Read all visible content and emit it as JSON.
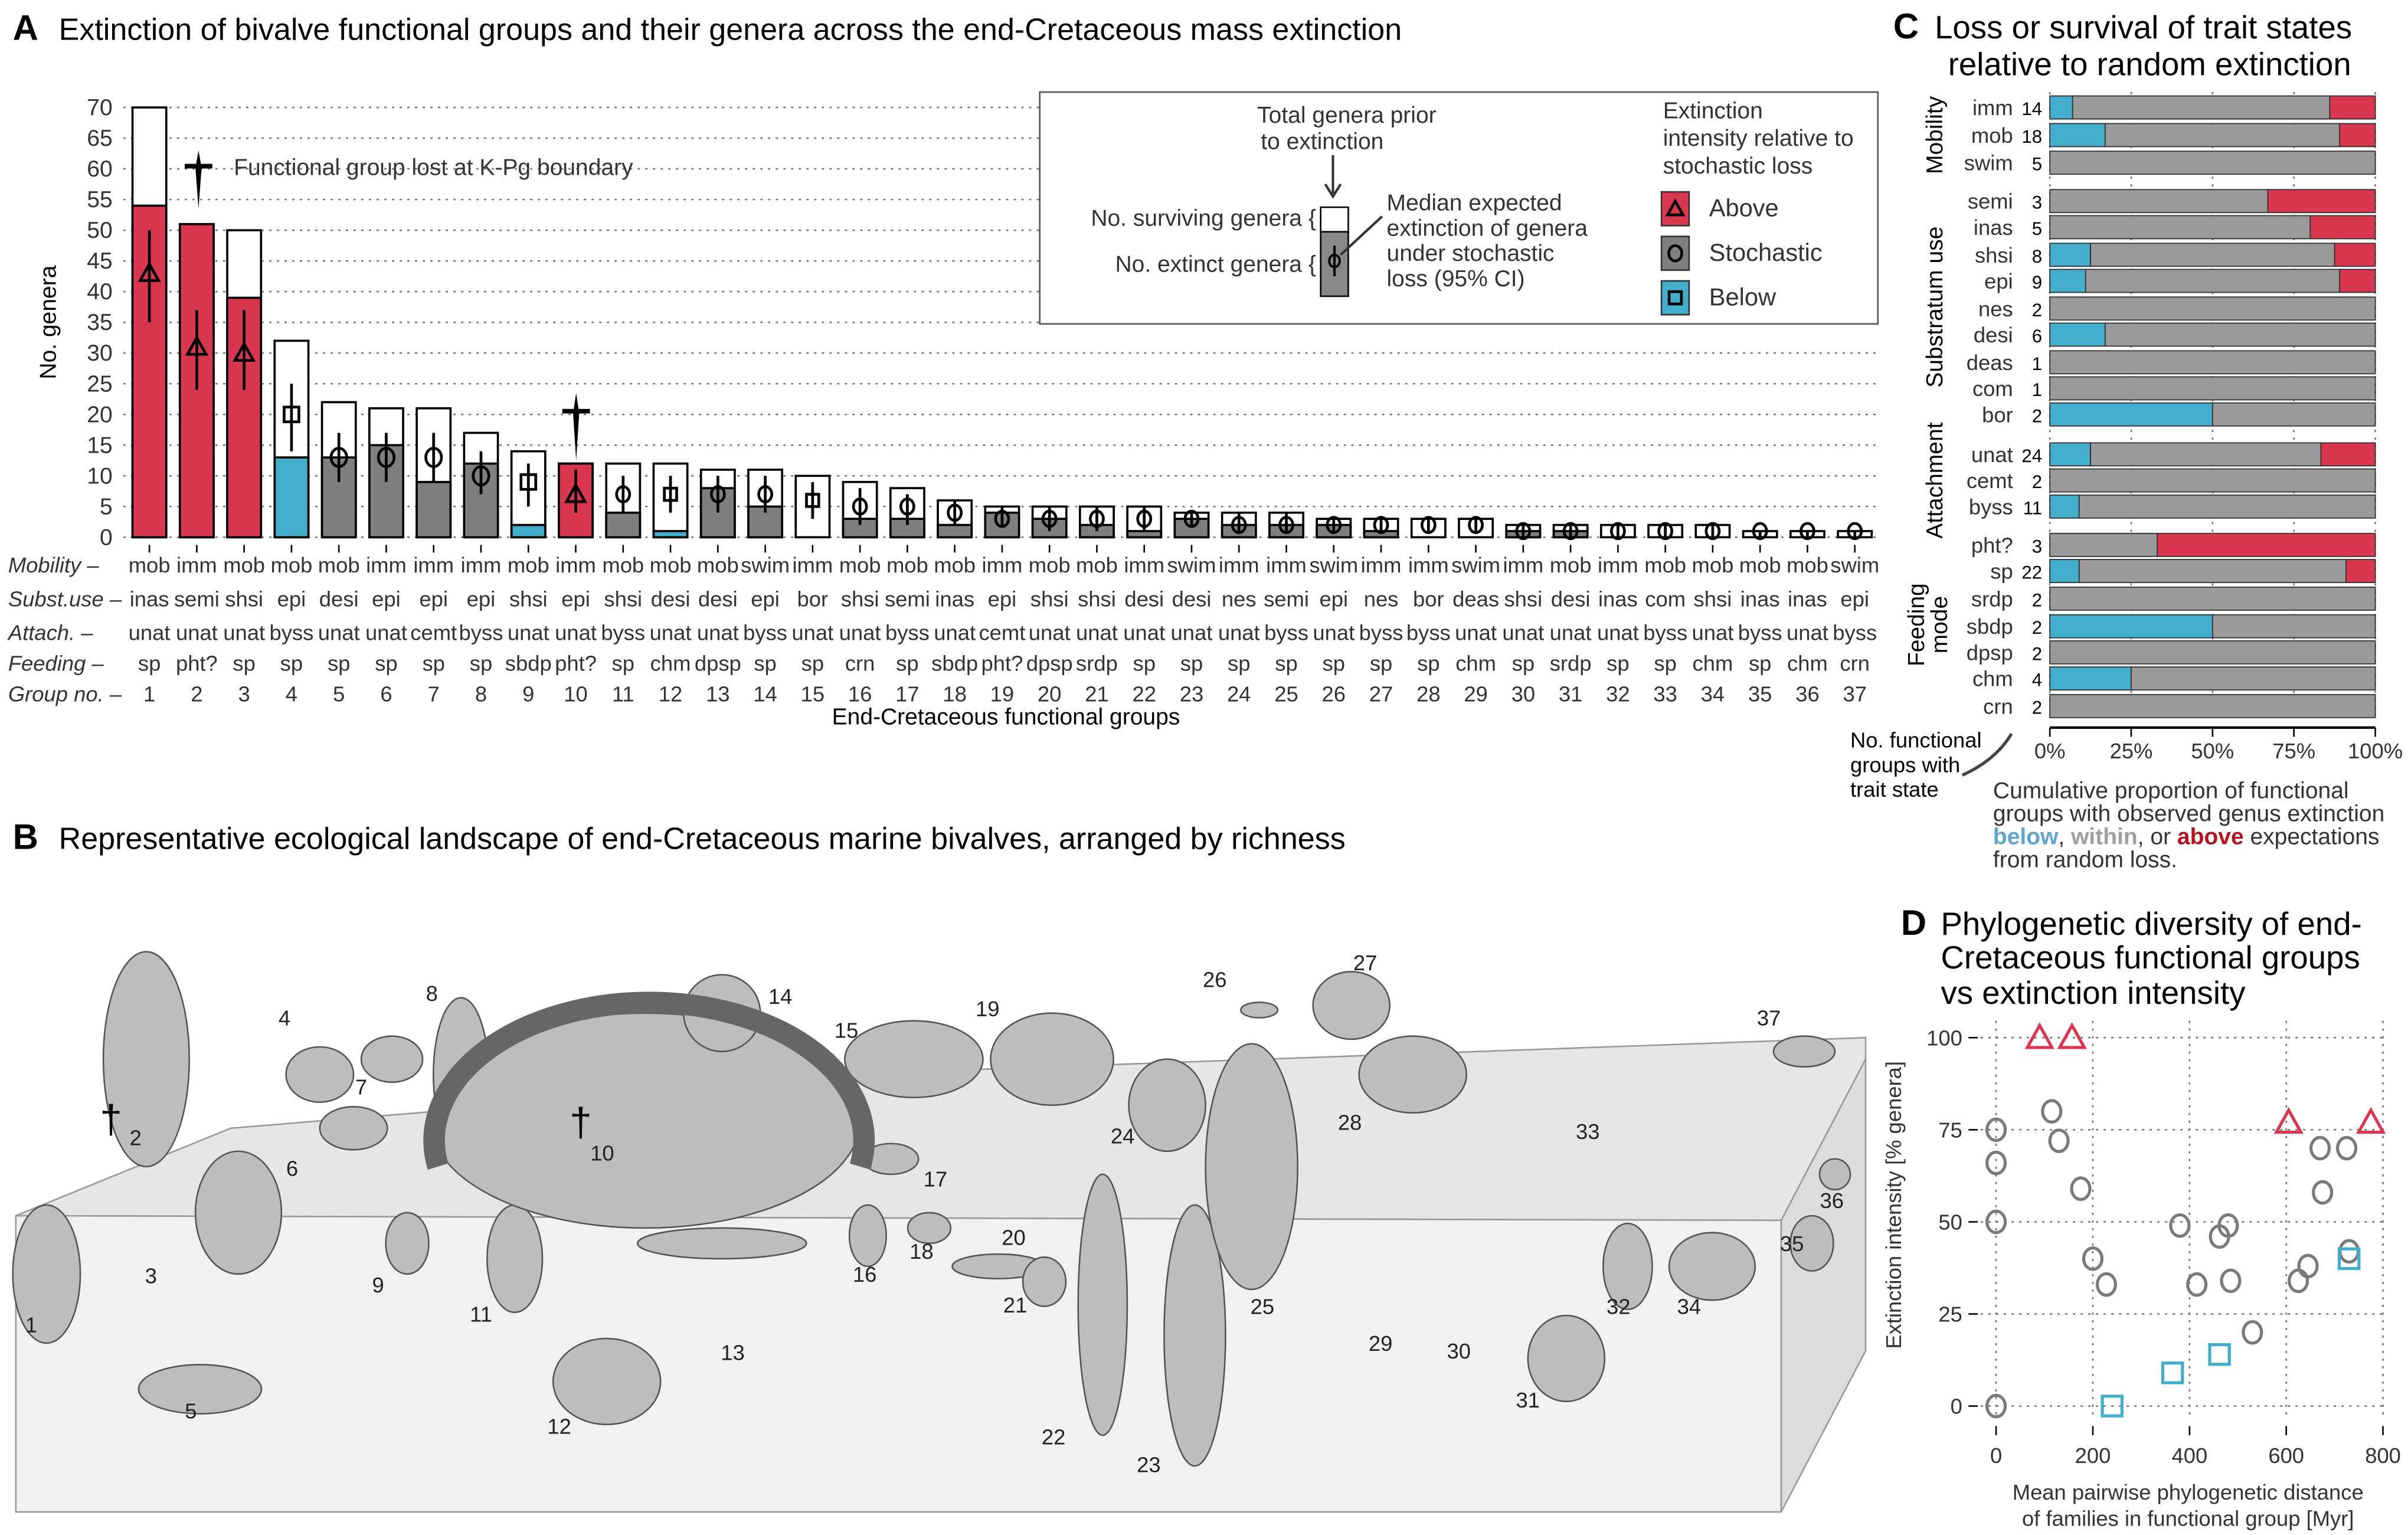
{
  "panel_a": {
    "letter": "A",
    "title": "Extinction of bivalve functional groups and their genera across the end-Cretaceous mass extinction",
    "ylabel": "No. genera",
    "xlabel": "End-Cretaceous functional groups",
    "yticks": [
      "0",
      "5",
      "10",
      "15",
      "20",
      "25",
      "30",
      "35",
      "40",
      "45",
      "50",
      "55",
      "60",
      "65",
      "70"
    ],
    "row_labels": [
      "Mobility –",
      "Subst.use –",
      "Attach. –",
      "Feeding –",
      "Group no. –"
    ],
    "annotation": "Functional group lost at K-Pg boundary",
    "legend": {
      "total_1": "Total genera prior",
      "total_2": "to extinction",
      "surviving": "No. surviving genera {",
      "extinct": "No. extinct genera {",
      "median_1": "Median expected",
      "median_2": "extinction of genera",
      "median_3": "under stochastic",
      "median_4": "loss (95% CI)",
      "intensity_1": "Extinction",
      "intensity_2": "intensity relative to",
      "intensity_3": "stochastic loss",
      "above": "Above",
      "stochastic": "Stochastic",
      "below": "Below"
    }
  },
  "panel_b": {
    "letter": "B",
    "title": "Representative ecological landscape of end-Cretaceous marine bivalves, arranged by richness",
    "labels": [
      "1",
      "2",
      "3",
      "4",
      "5",
      "6",
      "7",
      "8",
      "9",
      "10",
      "11",
      "12",
      "13",
      "14",
      "15",
      "16",
      "17",
      "18",
      "19",
      "20",
      "21",
      "22",
      "23",
      "24",
      "25",
      "26",
      "27",
      "28",
      "29",
      "30",
      "31",
      "32",
      "33",
      "34",
      "35",
      "36",
      "37"
    ],
    "dagger": "†"
  },
  "panel_c": {
    "letter": "C",
    "title_1": "Loss or survival of trait states",
    "title_2": "relative to random extinction",
    "count_note": [
      "No. functional",
      "groups with",
      "trait state"
    ],
    "caption_1": "Cumulative proportion of functional",
    "caption_2": "groups with observed genus extinction",
    "caption_below": "below",
    "caption_sep1": ", ",
    "caption_within": "within",
    "caption_sep2": ", or ",
    "caption_above": "above",
    "caption_end": " expectations",
    "caption_4": "from random loss."
  },
  "panel_d": {
    "letter": "D",
    "title_1": "Phylogenetic diversity of end-",
    "title_2": "Cretaceous functional groups",
    "title_3": "vs extinction intensity"
  },
  "colors": {
    "above": "#d9374f",
    "stochastic": "#7f7f7f",
    "below": "#43aecb",
    "within": "#9a9a9a",
    "caption_above": "#b3131f",
    "caption_below": "#5fa3d0",
    "caption_within": "#a0a0a0"
  },
  "chart_data": [
    {
      "type": "bar",
      "title": "Extinction of bivalve functional groups and their genera across the end-Cretaceous mass extinction",
      "xlabel": "End-Cretaceous functional groups",
      "ylabel": "No. genera",
      "ylim": [
        0,
        70
      ],
      "group_no": [
        "1",
        "2",
        "3",
        "4",
        "5",
        "6",
        "7",
        "8",
        "9",
        "10",
        "11",
        "12",
        "13",
        "14",
        "15",
        "16",
        "17",
        "18",
        "19",
        "20",
        "21",
        "22",
        "23",
        "24",
        "25",
        "26",
        "27",
        "28",
        "29",
        "30",
        "31",
        "32",
        "33",
        "34",
        "35",
        "36",
        "37"
      ],
      "mobility": [
        "mob",
        "imm",
        "mob",
        "mob",
        "mob",
        "imm",
        "imm",
        "imm",
        "mob",
        "imm",
        "mob",
        "mob",
        "mob",
        "swim",
        "imm",
        "mob",
        "mob",
        "mob",
        "imm",
        "mob",
        "mob",
        "imm",
        "swim",
        "imm",
        "imm",
        "swim",
        "imm",
        "imm",
        "swim",
        "imm",
        "mob",
        "imm",
        "mob",
        "mob",
        "mob",
        "mob",
        "swim"
      ],
      "substrate": [
        "inas",
        "semi",
        "shsi",
        "epi",
        "desi",
        "epi",
        "epi",
        "epi",
        "shsi",
        "epi",
        "shsi",
        "desi",
        "desi",
        "epi",
        "bor",
        "shsi",
        "semi",
        "inas",
        "epi",
        "shsi",
        "shsi",
        "desi",
        "desi",
        "nes",
        "semi",
        "epi",
        "nes",
        "bor",
        "deas",
        "shsi",
        "desi",
        "inas",
        "com",
        "shsi",
        "inas",
        "inas",
        "epi"
      ],
      "attachment": [
        "unat",
        "unat",
        "unat",
        "byss",
        "unat",
        "unat",
        "cemt",
        "byss",
        "unat",
        "unat",
        "byss",
        "unat",
        "unat",
        "byss",
        "unat",
        "unat",
        "byss",
        "unat",
        "cemt",
        "unat",
        "unat",
        "unat",
        "unat",
        "unat",
        "byss",
        "unat",
        "byss",
        "byss",
        "unat",
        "unat",
        "unat",
        "unat",
        "byss",
        "unat",
        "byss",
        "unat",
        "byss"
      ],
      "feeding": [
        "sp",
        "pht?",
        "sp",
        "sp",
        "sp",
        "sp",
        "sp",
        "sp",
        "sbdp",
        "pht?",
        "sp",
        "chm",
        "dpsp",
        "sp",
        "sp",
        "crn",
        "sp",
        "sbdp",
        "pht?",
        "dpsp",
        "srdp",
        "sp",
        "sp",
        "sp",
        "sp",
        "sp",
        "sp",
        "sp",
        "chm",
        "sp",
        "srdp",
        "sp",
        "sp",
        "chm",
        "sp",
        "chm",
        "crn"
      ],
      "total_genera": [
        70,
        51,
        50,
        32,
        22,
        21,
        21,
        17,
        14,
        12,
        12,
        12,
        11,
        11,
        10,
        9,
        8,
        6,
        5,
        5,
        5,
        5,
        4,
        4,
        4,
        3,
        3,
        3,
        3,
        2,
        2,
        2,
        2,
        2,
        1,
        1,
        1
      ],
      "extinct_genera": [
        54,
        51,
        39,
        13,
        13,
        15,
        9,
        12,
        2,
        12,
        4,
        1,
        8,
        5,
        0,
        3,
        3,
        2,
        4,
        3,
        2,
        1,
        3,
        2,
        2,
        2,
        1,
        0,
        0,
        1,
        1,
        0,
        0,
        0,
        0,
        0,
        0
      ],
      "expected_median": [
        43,
        31,
        30,
        20,
        13,
        13,
        13,
        10,
        9,
        7,
        7,
        7,
        7,
        7,
        6,
        5,
        5,
        4,
        3,
        3,
        3,
        3,
        3,
        2,
        2,
        2,
        2,
        2,
        2,
        1,
        1,
        1,
        1,
        1,
        1,
        1,
        1
      ],
      "expected_ci_low": [
        35,
        24,
        24,
        14,
        9,
        9,
        9,
        7,
        5,
        4,
        4,
        4,
        4,
        4,
        3,
        2,
        2,
        2,
        2,
        1,
        1,
        1,
        2,
        1,
        1,
        1,
        1,
        1,
        1,
        0,
        0,
        0,
        0,
        0,
        0,
        0,
        0
      ],
      "expected_ci_high": [
        50,
        37,
        37,
        25,
        17,
        17,
        17,
        14,
        12,
        11,
        10,
        10,
        10,
        10,
        9,
        8,
        7,
        6,
        5,
        5,
        5,
        5,
        4,
        4,
        4,
        3,
        3,
        3,
        3,
        2,
        2,
        2,
        2,
        2,
        1,
        1,
        1
      ],
      "intensity": [
        "above",
        "above",
        "above",
        "below",
        "stochastic",
        "stochastic",
        "stochastic",
        "stochastic",
        "below",
        "above",
        "stochastic",
        "below",
        "stochastic",
        "stochastic",
        "below",
        "stochastic",
        "stochastic",
        "stochastic",
        "stochastic",
        "stochastic",
        "stochastic",
        "stochastic",
        "stochastic",
        "stochastic",
        "stochastic",
        "stochastic",
        "stochastic",
        "stochastic",
        "stochastic",
        "stochastic",
        "stochastic",
        "stochastic",
        "stochastic",
        "stochastic",
        "stochastic",
        "stochastic",
        "stochastic"
      ],
      "lost_at_kpg": [
        2,
        10
      ]
    },
    {
      "type": "bar",
      "orientation": "horizontal-stacked",
      "title": "Loss or survival of trait states relative to random extinction",
      "xlabel": "Cumulative proportion of functional groups with observed genus extinction below, within, or above expectations from random loss.",
      "xticks": [
        "0%",
        "25%",
        "50%",
        "75%",
        "100%"
      ],
      "xlim": [
        0,
        1
      ],
      "groups": [
        {
          "name": "Mobility",
          "rows": [
            {
              "state": "imm",
              "n": "14",
              "below": 0.07,
              "within": 0.79,
              "above": 0.14
            },
            {
              "state": "mob",
              "n": "18",
              "below": 0.17,
              "within": 0.72,
              "above": 0.11
            },
            {
              "state": "swim",
              "n": "5",
              "below": 0,
              "within": 1,
              "above": 0
            }
          ]
        },
        {
          "name": "Substratum use",
          "rows": [
            {
              "state": "semi",
              "n": "3",
              "below": 0,
              "within": 0.67,
              "above": 0.33
            },
            {
              "state": "inas",
              "n": "5",
              "below": 0,
              "within": 0.8,
              "above": 0.2
            },
            {
              "state": "shsi",
              "n": "8",
              "below": 0.125,
              "within": 0.75,
              "above": 0.125
            },
            {
              "state": "epi",
              "n": "9",
              "below": 0.11,
              "within": 0.78,
              "above": 0.11
            },
            {
              "state": "nes",
              "n": "2",
              "below": 0,
              "within": 1,
              "above": 0
            },
            {
              "state": "desi",
              "n": "6",
              "below": 0.17,
              "within": 0.83,
              "above": 0
            },
            {
              "state": "deas",
              "n": "1",
              "below": 0,
              "within": 1,
              "above": 0
            },
            {
              "state": "com",
              "n": "1",
              "below": 0,
              "within": 1,
              "above": 0
            },
            {
              "state": "bor",
              "n": "2",
              "below": 0.5,
              "within": 0.5,
              "above": 0
            }
          ]
        },
        {
          "name": "Attachment",
          "rows": [
            {
              "state": "unat",
              "n": "24",
              "below": 0.125,
              "within": 0.708,
              "above": 0.167
            },
            {
              "state": "cemt",
              "n": "2",
              "below": 0,
              "within": 1,
              "above": 0
            },
            {
              "state": "byss",
              "n": "11",
              "below": 0.09,
              "within": 0.91,
              "above": 0
            }
          ]
        },
        {
          "name": "Feeding mode",
          "rows": [
            {
              "state": "pht?",
              "n": "3",
              "below": 0,
              "within": 0.33,
              "above": 0.67
            },
            {
              "state": "sp",
              "n": "22",
              "below": 0.09,
              "within": 0.82,
              "above": 0.09
            },
            {
              "state": "srdp",
              "n": "2",
              "below": 0,
              "within": 1,
              "above": 0
            },
            {
              "state": "sbdp",
              "n": "2",
              "below": 0.5,
              "within": 0.5,
              "above": 0
            },
            {
              "state": "dpsp",
              "n": "2",
              "below": 0,
              "within": 1,
              "above": 0
            },
            {
              "state": "chm",
              "n": "4",
              "below": 0.25,
              "within": 0.75,
              "above": 0
            },
            {
              "state": "crn",
              "n": "2",
              "below": 0,
              "within": 1,
              "above": 0
            }
          ]
        }
      ]
    },
    {
      "type": "scatter",
      "title": "Phylogenetic diversity of end-Cretaceous functional groups vs extinction intensity",
      "xlabel_1": "Mean pairwise phylogenetic distance",
      "xlabel_2": "of families in functional group [Myr]",
      "ylabel": "Extinction intensity [% genera]",
      "xlim": [
        0,
        800
      ],
      "ylim": [
        0,
        100
      ],
      "xticks": [
        "0",
        "200",
        "400",
        "600",
        "800"
      ],
      "yticks": [
        "0",
        "25",
        "50",
        "75",
        "100"
      ],
      "grid": true,
      "series": [
        {
          "name": "Above",
          "marker": "triangle",
          "points": [
            [
              90,
              100
            ],
            [
              157,
              100
            ],
            [
              605,
              77
            ],
            [
              775,
              77
            ]
          ]
        },
        {
          "name": "Stochastic",
          "marker": "circle",
          "points": [
            [
              0,
              75
            ],
            [
              0,
              66
            ],
            [
              0,
              50
            ],
            [
              0,
              0
            ],
            [
              115,
              80
            ],
            [
              130,
              72
            ],
            [
              175,
              59
            ],
            [
              200,
              40
            ],
            [
              228,
              33
            ],
            [
              380,
              49
            ],
            [
              415,
              33
            ],
            [
              462,
              46
            ],
            [
              480,
              49
            ],
            [
              485,
              34
            ],
            [
              530,
              20
            ],
            [
              625,
              34
            ],
            [
              645,
              38
            ],
            [
              670,
              70
            ],
            [
              675,
              58
            ],
            [
              725,
              70
            ],
            [
              730,
              42
            ]
          ]
        },
        {
          "name": "Below",
          "marker": "square",
          "points": [
            [
              240,
              0
            ],
            [
              365,
              9
            ],
            [
              462,
              14
            ],
            [
              730,
              40
            ]
          ]
        }
      ]
    }
  ]
}
